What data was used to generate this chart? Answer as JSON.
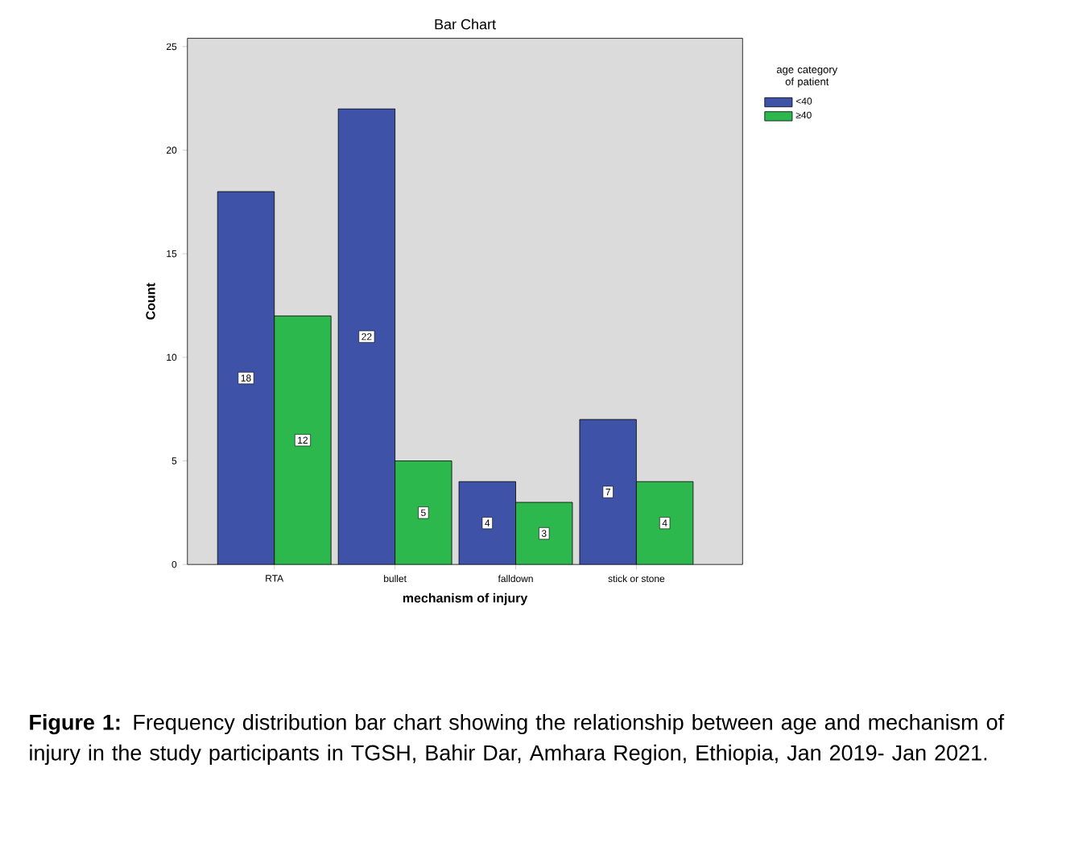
{
  "chart_data": {
    "type": "bar",
    "title": "Bar Chart",
    "xlabel": "mechanism of injury",
    "ylabel": "Count",
    "legend_title": "age category of patient",
    "categories": [
      "RTA",
      "bullet",
      "falldown",
      "stick or stone"
    ],
    "series": [
      {
        "name": "<40",
        "color": "#3e53a8",
        "values": [
          18,
          22,
          4,
          7
        ]
      },
      {
        "name": "≥40",
        "color": "#2db84d",
        "values": [
          12,
          5,
          3,
          4
        ]
      }
    ],
    "ylim": [
      0,
      25.4
    ],
    "yticks": [
      0,
      5,
      10,
      15,
      20,
      25
    ],
    "data_labels": true,
    "legend": "top right",
    "grid": false,
    "annotations": [
      "**Figure 1:** Frequency distribution bar chart showing the relationship between age and mechanism of injury in the study participants in TGSH, Bahir Dar, Amhara Region, Ethiopia, Jan 2019- Jan 2021."
    ]
  }
}
